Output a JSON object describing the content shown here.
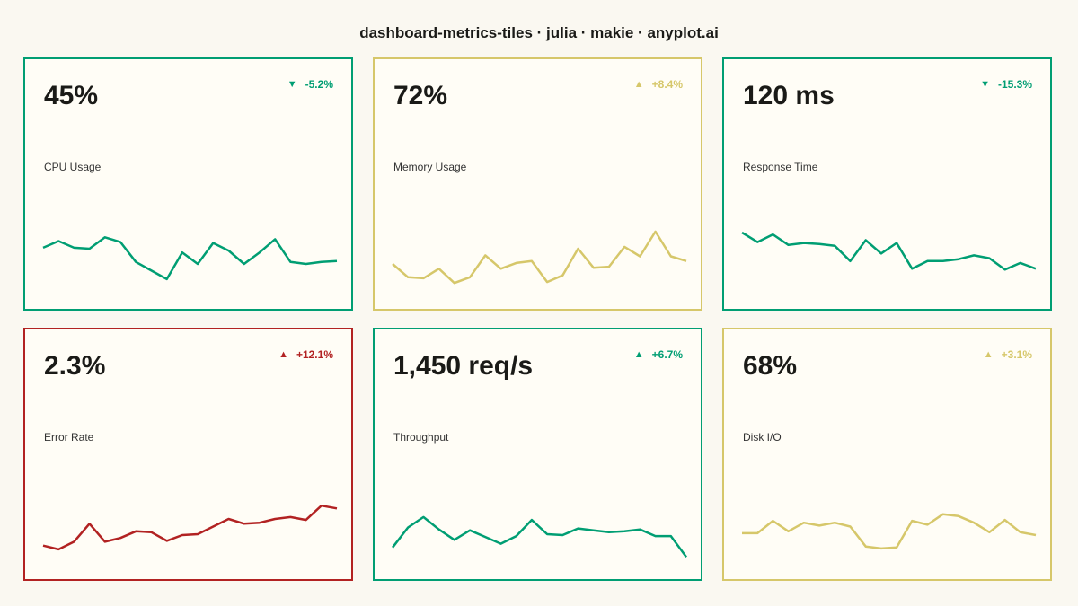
{
  "page": {
    "title": "dashboard-metrics-tiles · julia · makie · anyplot.ai"
  },
  "colors": {
    "good": "#009E73",
    "bad": "#B22222",
    "neutral": "#D6C76A",
    "background": "#FAF8F1",
    "tile": "#FFFDF6"
  },
  "chart_data": [
    {
      "type": "line",
      "metric": "CPU Usage",
      "value": "45%",
      "change": "-5.2%",
      "direction": "down",
      "status": "good",
      "y": [
        51,
        58,
        51,
        50,
        62,
        57,
        36,
        27,
        18,
        46,
        34,
        56,
        48,
        34,
        46,
        60,
        36,
        34,
        36,
        37
      ]
    },
    {
      "type": "line",
      "metric": "Memory Usage",
      "value": "72%",
      "change": "+8.4%",
      "direction": "up",
      "status": "neutral",
      "y": [
        34,
        20,
        19,
        29,
        14,
        20,
        43,
        29,
        35,
        37,
        15,
        22,
        50,
        30,
        31,
        52,
        42,
        68,
        42,
        37
      ]
    },
    {
      "type": "line",
      "metric": "Response Time",
      "value": "120 ms",
      "change": "-15.3%",
      "direction": "down",
      "status": "good",
      "y": [
        67,
        57,
        65,
        54,
        56,
        55,
        53,
        37,
        59,
        45,
        56,
        29,
        37,
        37,
        39,
        43,
        40,
        28,
        35,
        29
      ]
    },
    {
      "type": "line",
      "metric": "Error Rate",
      "value": "2.3%",
      "change": "+12.1%",
      "direction": "up",
      "status": "bad",
      "y": [
        22,
        18,
        26,
        45,
        26,
        30,
        37,
        36,
        27,
        33,
        34,
        42,
        50,
        45,
        46,
        50,
        52,
        49,
        64,
        61
      ]
    },
    {
      "type": "line",
      "metric": "Throughput",
      "value": "1,450 req/s",
      "change": "+6.7%",
      "direction": "up",
      "status": "good",
      "y": [
        20,
        41,
        52,
        39,
        28,
        38,
        31,
        24,
        32,
        49,
        34,
        33,
        40,
        38,
        36,
        37,
        39,
        32,
        32,
        10
      ]
    },
    {
      "type": "line",
      "metric": "Disk I/O",
      "value": "68%",
      "change": "+3.1%",
      "direction": "up",
      "status": "neutral",
      "y": [
        35,
        35,
        48,
        37,
        46,
        43,
        46,
        42,
        21,
        19,
        20,
        48,
        44,
        55,
        53,
        46,
        36,
        49,
        36,
        33
      ]
    }
  ]
}
